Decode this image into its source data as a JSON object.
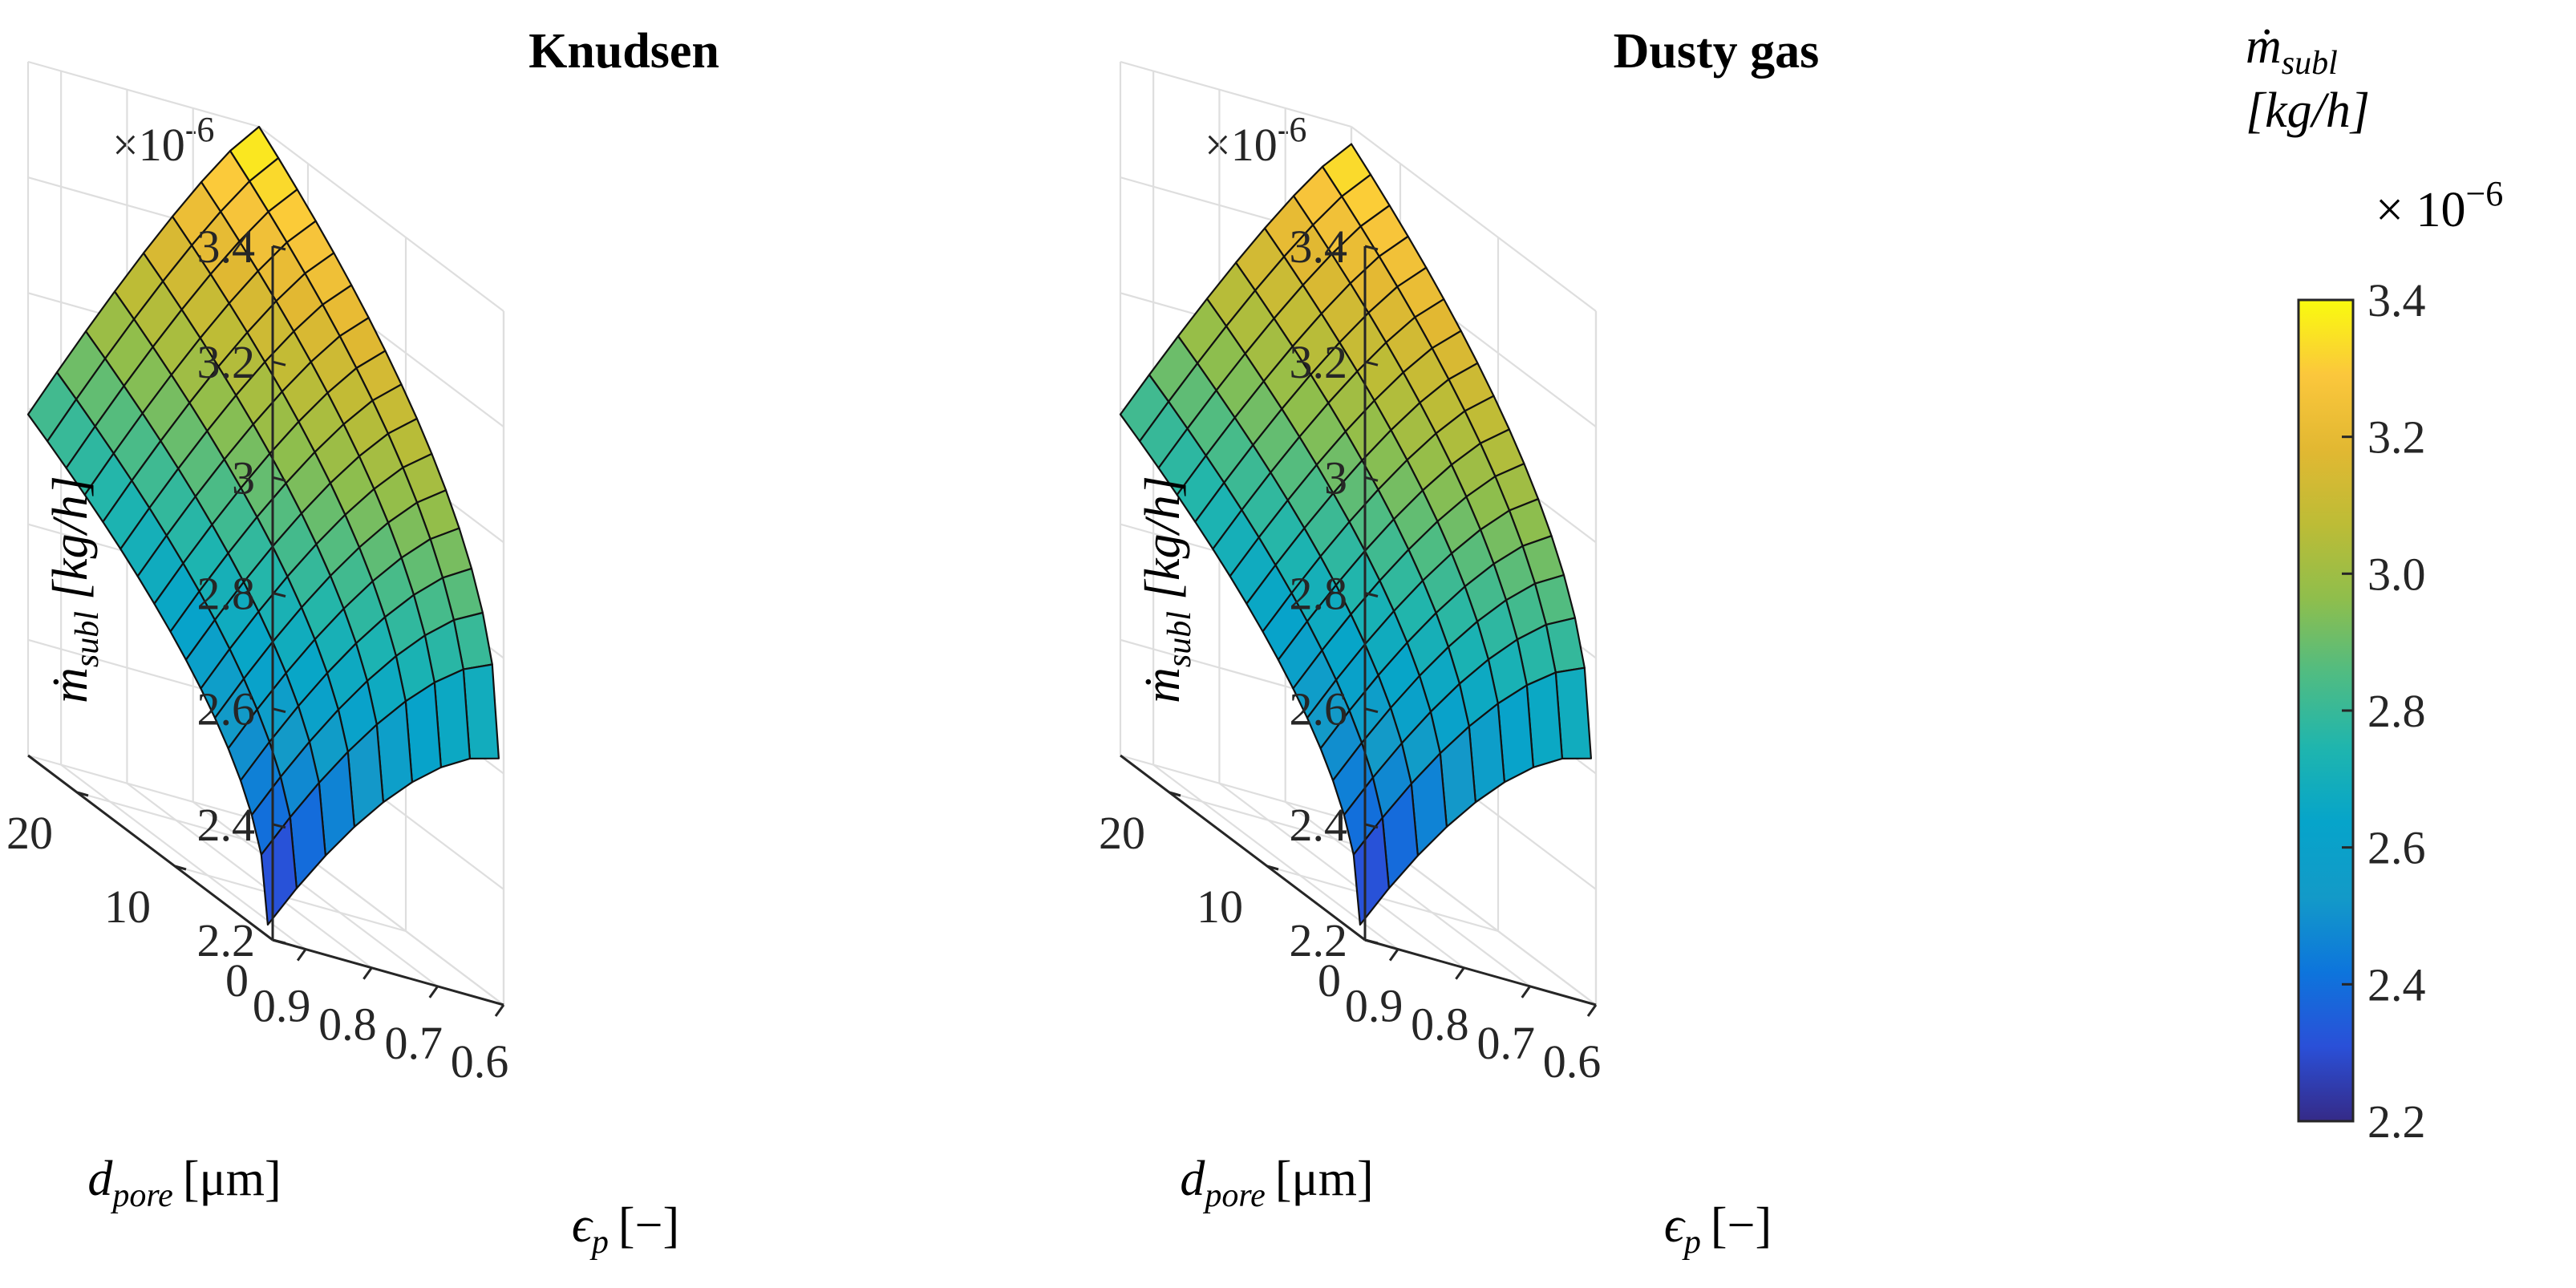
{
  "chart_data": [
    {
      "type": "surface3d",
      "title": "Knudsen",
      "exponent_label": "×10",
      "exponent_power": "-6",
      "zlabel": {
        "symbol": "ṁ",
        "subscript": "subl",
        "unit": "[kg/h]"
      },
      "xlabel": {
        "symbol": "ϵ",
        "subscript": "p",
        "unit": "[−]"
      },
      "ylabel": {
        "symbol": "d",
        "subscript": "pore",
        "unit": "[μm]"
      },
      "x_axis": {
        "range": [
          0.6,
          0.95
        ],
        "ticks": [
          0.6,
          0.7,
          0.8,
          0.9
        ],
        "tick_labels": [
          "0.6",
          "0.7",
          "0.8",
          "0.9"
        ]
      },
      "y_axis": {
        "range": [
          0,
          25
        ],
        "ticks": [
          0,
          10,
          20
        ],
        "tick_labels": [
          "0",
          "10",
          "20"
        ]
      },
      "z_axis": {
        "range": [
          2.2,
          3.4
        ],
        "ticks": [
          2.2,
          2.4,
          2.6,
          2.8,
          3.0,
          3.2,
          3.4
        ],
        "tick_labels": [
          "2.2",
          "2.4",
          "2.6",
          "2.8",
          "3",
          "3.2",
          "3.4"
        ]
      },
      "surface_corners": {
        "eps_0.6_dpore_25": 3.4,
        "eps_0.6_dpore_0.5": 2.62,
        "eps_0.95_dpore_25": 2.79,
        "eps_0.95_dpore_0.5": 2.22
      },
      "mesh": {
        "eps_lines": 8,
        "dpore_lines": 16
      }
    },
    {
      "type": "surface3d",
      "title": "Dusty gas",
      "exponent_label": "×10",
      "exponent_power": "-6",
      "zlabel": {
        "symbol": "ṁ",
        "subscript": "subl",
        "unit": "[kg/h]"
      },
      "xlabel": {
        "symbol": "ϵ",
        "subscript": "p",
        "unit": "[−]"
      },
      "ylabel": {
        "symbol": "d",
        "subscript": "pore",
        "unit": "[μm]"
      },
      "x_axis": {
        "range": [
          0.6,
          0.95
        ],
        "ticks": [
          0.6,
          0.7,
          0.8,
          0.9
        ],
        "tick_labels": [
          "0.6",
          "0.7",
          "0.8",
          "0.9"
        ]
      },
      "y_axis": {
        "range": [
          0,
          25
        ],
        "ticks": [
          0,
          10,
          20
        ],
        "tick_labels": [
          "0",
          "10",
          "20"
        ]
      },
      "z_axis": {
        "range": [
          2.2,
          3.4
        ],
        "ticks": [
          2.2,
          2.4,
          2.6,
          2.8,
          3.0,
          3.2,
          3.4
        ],
        "tick_labels": [
          "2.2",
          "2.4",
          "2.6",
          "2.8",
          "3",
          "3.2",
          "3.4"
        ]
      },
      "surface_corners": {
        "eps_0.6_dpore_25": 3.37,
        "eps_0.6_dpore_0.5": 2.62,
        "eps_0.95_dpore_25": 2.79,
        "eps_0.95_dpore_0.5": 2.22
      },
      "mesh": {
        "eps_lines": 8,
        "dpore_lines": 16
      }
    }
  ],
  "colorbar": {
    "title_symbol": "ṁ",
    "title_subscript": "subl",
    "title_unit": "[kg/h]",
    "exponent_label": "× 10",
    "exponent_power": "−6",
    "range": [
      2.2,
      3.4
    ],
    "ticks": [
      2.2,
      2.4,
      2.6,
      2.8,
      3.0,
      3.2,
      3.4
    ],
    "tick_labels": [
      "2.2",
      "2.4",
      "2.6",
      "2.8",
      "3.0",
      "3.2",
      "3.4"
    ],
    "colormap": "parula",
    "colormap_stops": [
      "#352a87",
      "#2a50d8",
      "#0d75dc",
      "#139ac8",
      "#06a4ca",
      "#1fb5ae",
      "#50bc82",
      "#8fbe4c",
      "#bdbc36",
      "#e2b832",
      "#fbc73c",
      "#f9fb0e"
    ]
  }
}
